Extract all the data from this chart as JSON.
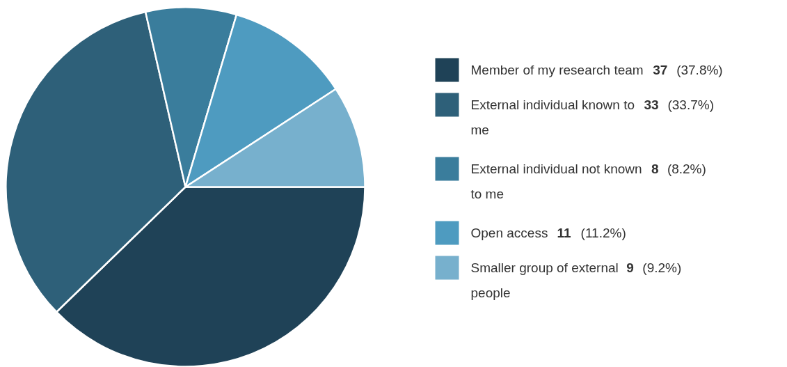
{
  "chart_data": {
    "type": "pie",
    "categories": [
      "Member of my research team",
      "External individual known to me",
      "External individual not known to me",
      "Open access",
      "Smaller group of external people"
    ],
    "values": [
      37,
      33,
      8,
      11,
      9
    ],
    "value_labels": [
      "37 (37.8%)",
      "33 (33.7%)",
      "8 (8.2%)",
      "11 (11.2%)",
      "9 (9.2%)"
    ],
    "colors": [
      "#1f4257",
      "#2e6079",
      "#3a7d9c",
      "#4e9bc0",
      "#77b0cd"
    ],
    "legend": "right"
  }
}
